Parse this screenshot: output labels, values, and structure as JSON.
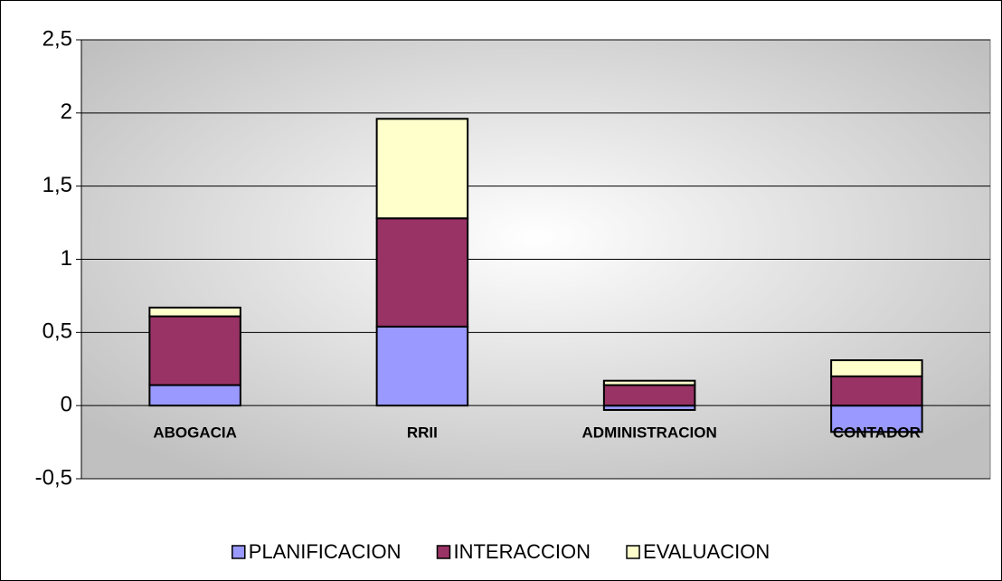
{
  "chart_data": {
    "type": "stacked_bar",
    "categories": [
      "ABOGACIA",
      "RRII",
      "ADMINISTRACION",
      "CONTADOR"
    ],
    "series": [
      {
        "name": "PLANIFICACION",
        "color": "#9999ff",
        "values": [
          0.14,
          0.54,
          -0.03,
          -0.18
        ]
      },
      {
        "name": "INTERACCION",
        "color": "#993366",
        "values": [
          0.47,
          0.74,
          0.14,
          0.2
        ]
      },
      {
        "name": "EVALUACION",
        "color": "#ffffcc",
        "values": [
          0.06,
          0.68,
          0.03,
          0.11
        ]
      }
    ],
    "ylim": [
      -0.5,
      2.5
    ],
    "yticks": [
      {
        "value": -0.5,
        "label": "-0,5"
      },
      0,
      {
        "value": 0.5,
        "label": "0,5"
      },
      1,
      {
        "value": 1.5,
        "label": "1,5"
      },
      2,
      {
        "value": 2.5,
        "label": "2,5"
      }
    ],
    "grid": true,
    "legend": "bottom"
  }
}
